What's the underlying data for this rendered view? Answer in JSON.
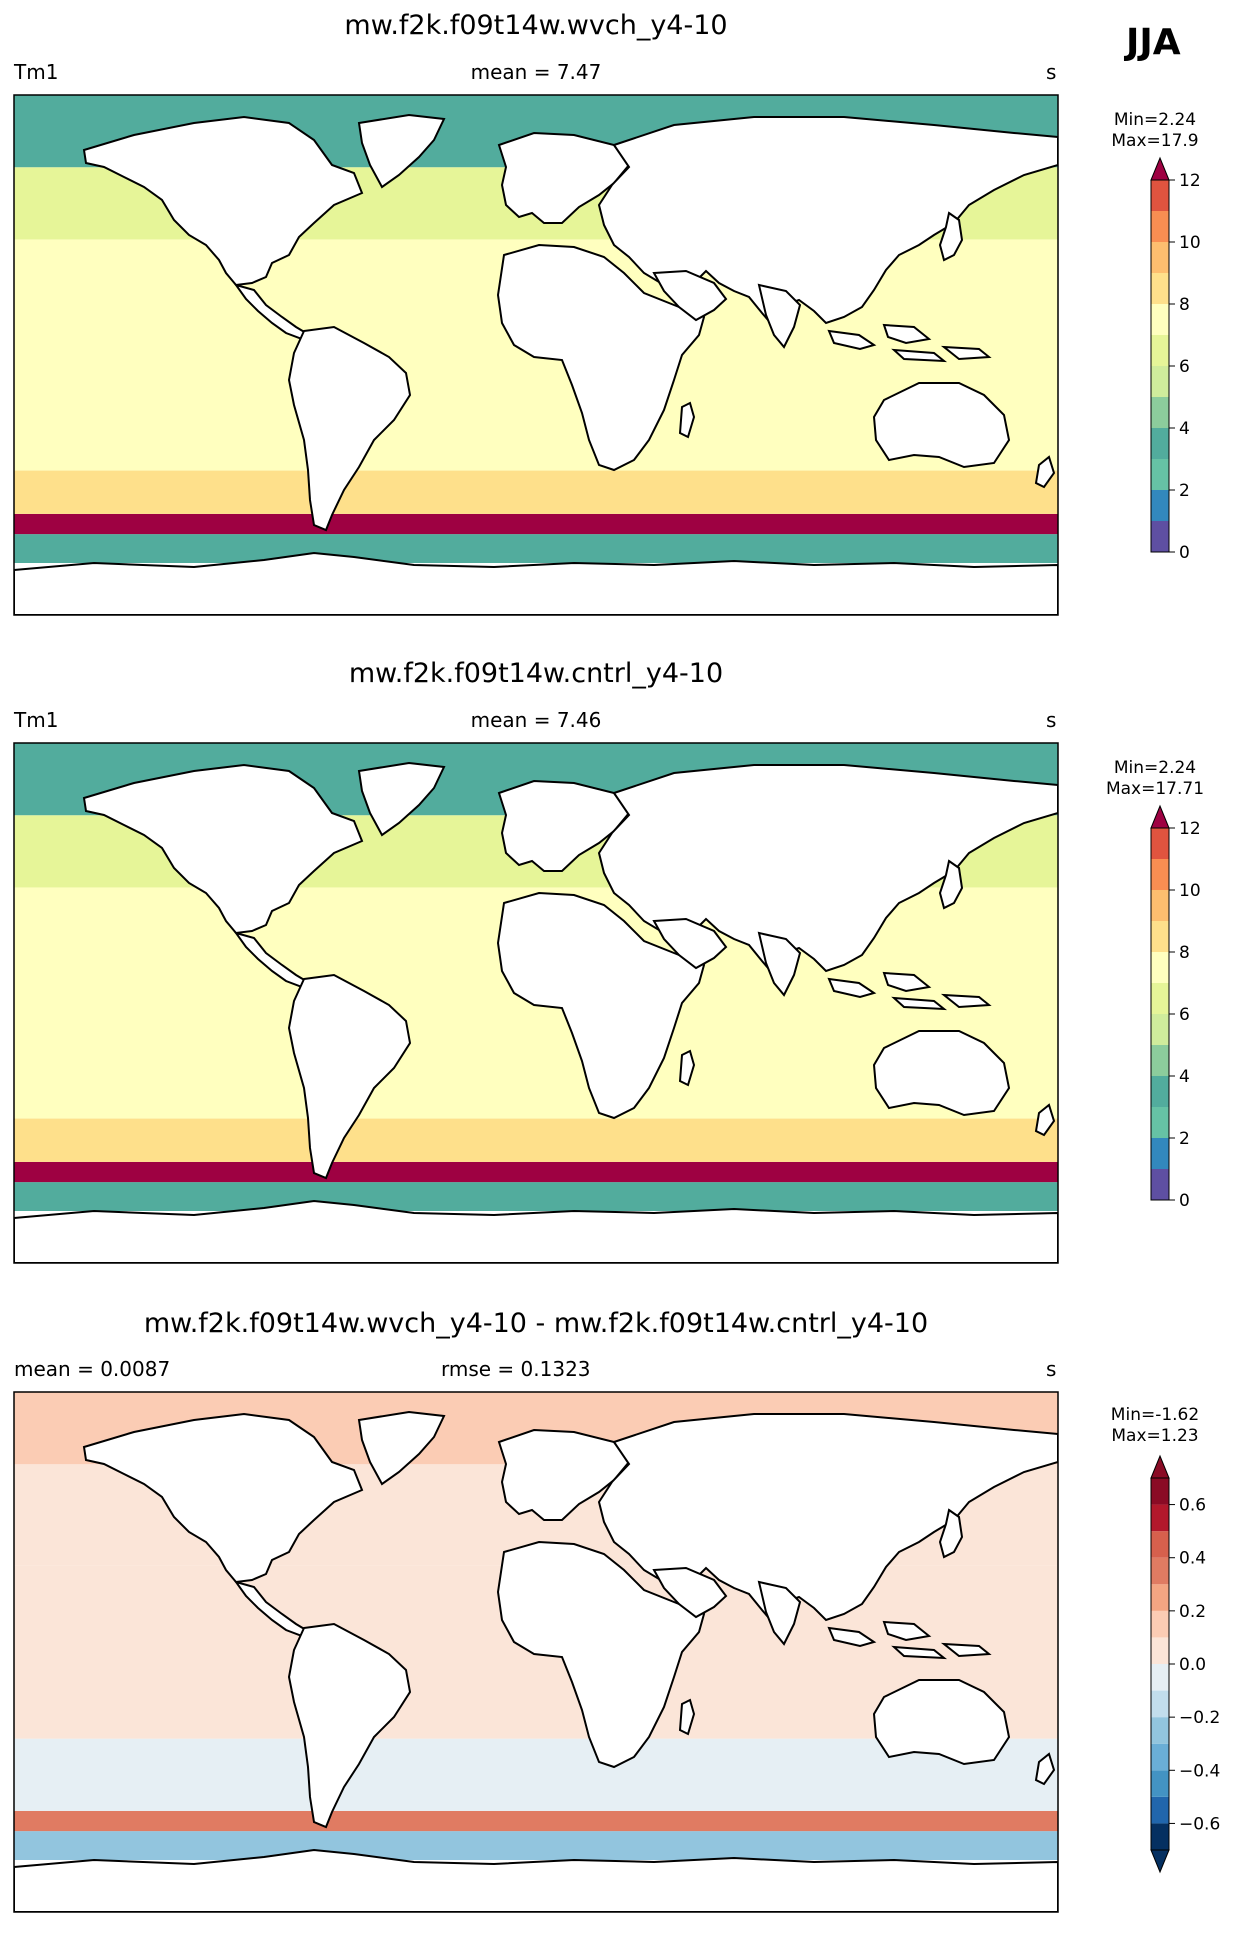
{
  "season": "JJA",
  "panels": [
    {
      "title": "mw.f2k.f09t14w.wvch_y4-10",
      "left_label": "Tm1",
      "center_label": "mean = 7.47",
      "right_label": "s",
      "min_text": "Min=2.24",
      "max_text": "Max=17.9"
    },
    {
      "title": "mw.f2k.f09t14w.cntrl_y4-10",
      "left_label": "Tm1",
      "center_label": "mean = 7.46",
      "right_label": "s",
      "min_text": "Min=2.24",
      "max_text": "Max=17.71"
    },
    {
      "title": "mw.f2k.f09t14w.wvch_y4-10 - mw.f2k.f09t14w.cntrl_y4-10",
      "left_label": "mean = 0.0087",
      "center_label": "rmse = 0.1323",
      "right_label": "s",
      "min_text": "Min=-1.62",
      "max_text": "Max=1.23"
    }
  ],
  "chart_data": [
    {
      "type": "heatmap",
      "title": "mw.f2k.f09t14w.wvch_y4-10",
      "variable": "Tm1",
      "units": "s",
      "mean": 7.47,
      "min": 2.24,
      "max": 17.9,
      "colorbar": {
        "levels": [
          0,
          1,
          2,
          3,
          4,
          5,
          6,
          7,
          8,
          9,
          10,
          11,
          12
        ],
        "tick_values": [
          0,
          2,
          4,
          6,
          8,
          10,
          12
        ],
        "tick_labels": [
          "0",
          "2",
          "4",
          "6",
          "8",
          "10",
          "12"
        ],
        "extend": "max",
        "colors": [
          "#5e4fa2",
          "#3288bd",
          "#66c2a5",
          "#52ac9d",
          "#8ccc9c",
          "#d0ec9c",
          "#e6f598",
          "#ffffbf",
          "#fee08b",
          "#fdbe6f",
          "#f98e52",
          "#e0543f",
          "#9e0142"
        ]
      },
      "bands": [
        {
          "lat": [
            -90,
            -72
          ],
          "value": null
        },
        {
          "lat": [
            -72,
            -62
          ],
          "value": 3
        },
        {
          "lat": [
            -62,
            -55
          ],
          "value": 13
        },
        {
          "lat": [
            -55,
            -40
          ],
          "value": 8
        },
        {
          "lat": [
            -40,
            40
          ],
          "value": 7.5
        },
        {
          "lat": [
            40,
            65
          ],
          "value": 6
        },
        {
          "lat": [
            65,
            90
          ],
          "value": 3
        }
      ]
    },
    {
      "type": "heatmap",
      "title": "mw.f2k.f09t14w.cntrl_y4-10",
      "variable": "Tm1",
      "units": "s",
      "mean": 7.46,
      "min": 2.24,
      "max": 17.71,
      "colorbar": {
        "levels": [
          0,
          1,
          2,
          3,
          4,
          5,
          6,
          7,
          8,
          9,
          10,
          11,
          12
        ],
        "tick_values": [
          0,
          2,
          4,
          6,
          8,
          10,
          12
        ],
        "tick_labels": [
          "0",
          "2",
          "4",
          "6",
          "8",
          "10",
          "12"
        ],
        "extend": "max",
        "colors": [
          "#5e4fa2",
          "#3288bd",
          "#66c2a5",
          "#52ac9d",
          "#8ccc9c",
          "#d0ec9c",
          "#e6f598",
          "#ffffbf",
          "#fee08b",
          "#fdbe6f",
          "#f98e52",
          "#e0543f",
          "#9e0142"
        ]
      },
      "bands": [
        {
          "lat": [
            -90,
            -72
          ],
          "value": null
        },
        {
          "lat": [
            -72,
            -62
          ],
          "value": 3
        },
        {
          "lat": [
            -62,
            -55
          ],
          "value": 13
        },
        {
          "lat": [
            -55,
            -40
          ],
          "value": 8
        },
        {
          "lat": [
            -40,
            40
          ],
          "value": 7.5
        },
        {
          "lat": [
            40,
            65
          ],
          "value": 6
        },
        {
          "lat": [
            65,
            90
          ],
          "value": 3
        }
      ]
    },
    {
      "type": "heatmap",
      "title": "mw.f2k.f09t14w.wvch_y4-10 - mw.f2k.f09t14w.cntrl_y4-10",
      "units": "s",
      "mean": 0.0087,
      "rmse": 0.1323,
      "min": -1.62,
      "max": 1.23,
      "colorbar": {
        "levels": [
          -0.7,
          -0.6,
          -0.5,
          -0.4,
          -0.3,
          -0.2,
          -0.1,
          0.0,
          0.1,
          0.2,
          0.3,
          0.4,
          0.5,
          0.6,
          0.7
        ],
        "tick_values": [
          -0.6,
          -0.4,
          -0.2,
          0.0,
          0.2,
          0.4,
          0.6
        ],
        "tick_labels": [
          "−0.6",
          "−0.4",
          "−0.2",
          "0.0",
          "0.2",
          "0.4",
          "0.6"
        ],
        "extend": "both",
        "colors": [
          "#053061",
          "#2166ac",
          "#4393c3",
          "#6aaed6",
          "#92c5de",
          "#c2ddec",
          "#e6eff4",
          "#fbe5d8",
          "#fbccb4",
          "#f4a582",
          "#e07b62",
          "#d6604d",
          "#b2182b",
          "#8a0b25"
        ]
      },
      "bands": [
        {
          "lat": [
            -90,
            -72
          ],
          "value": null
        },
        {
          "lat": [
            -72,
            -62
          ],
          "value": -0.3
        },
        {
          "lat": [
            -62,
            -55
          ],
          "value": 0.3
        },
        {
          "lat": [
            -55,
            -30
          ],
          "value": -0.1
        },
        {
          "lat": [
            -30,
            30
          ],
          "value": 0.05
        },
        {
          "lat": [
            30,
            65
          ],
          "value": 0.05
        },
        {
          "lat": [
            65,
            90
          ],
          "value": 0.1
        }
      ]
    }
  ]
}
